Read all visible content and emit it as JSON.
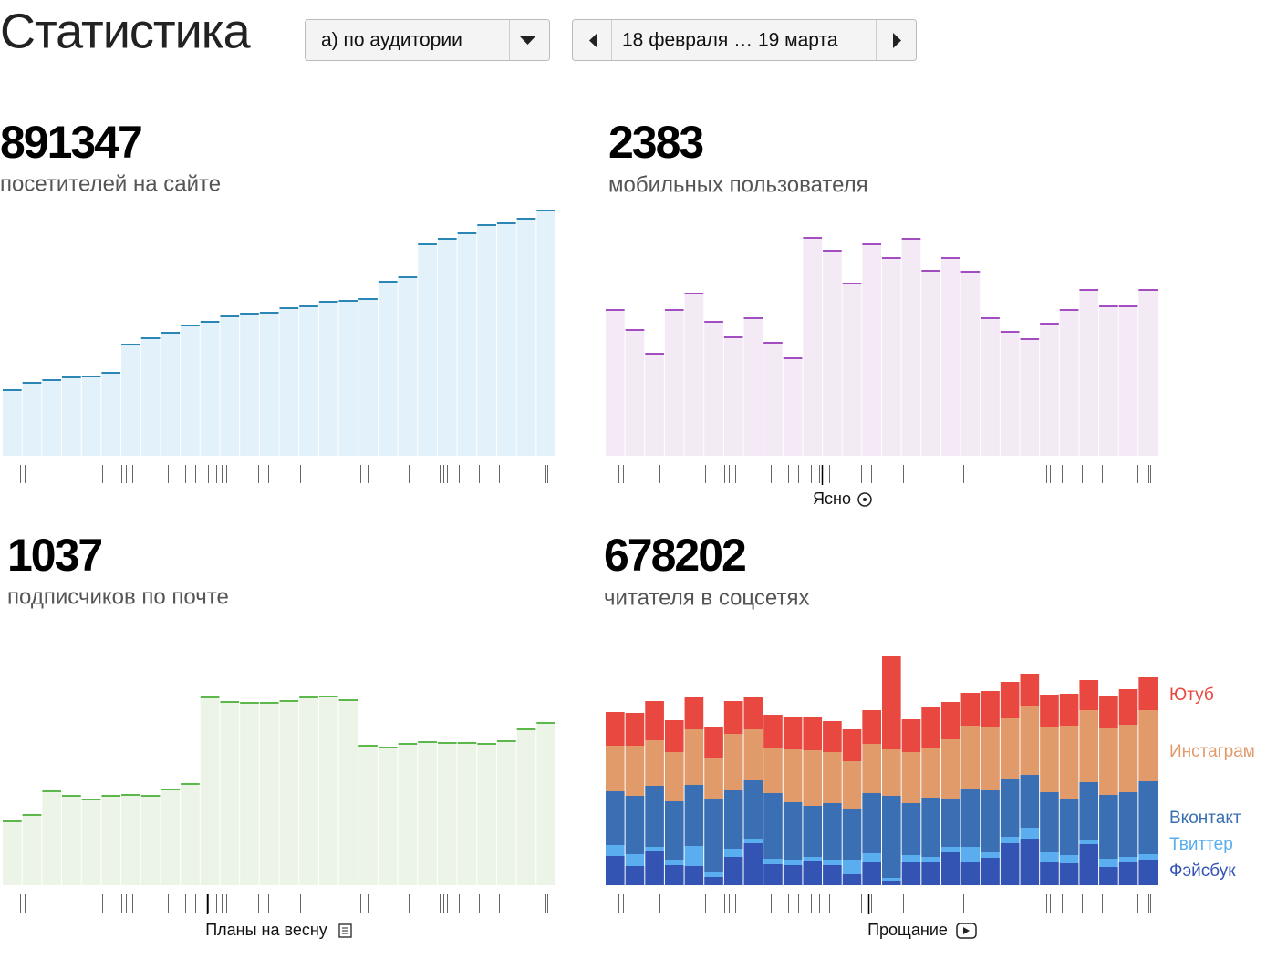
{
  "header": {
    "title": "Статистика",
    "filter": "а) по аудитории",
    "period": "18 февраля … 19 марта"
  },
  "chart_data": [
    {
      "type": "bar",
      "total": 891347,
      "subtitle": "посетителей на сайте",
      "color": "#2a86b5",
      "fill": "#e3f1fa",
      "ylim": [
        0,
        270
      ],
      "values": [
        72,
        80,
        83,
        86,
        87,
        91,
        122,
        129,
        135,
        143,
        147,
        153,
        156,
        157,
        162,
        164,
        169,
        170,
        172,
        191,
        196,
        232,
        238,
        244,
        253,
        255,
        260,
        269
      ]
    },
    {
      "type": "bar",
      "total": 2383,
      "subtitle": "мобильных пользователя",
      "color": "#a24ec0",
      "fill": "#f3eaf5",
      "ylim": [
        0,
        270
      ],
      "annotation": "Ясно",
      "values": [
        160,
        138,
        112,
        160,
        178,
        147,
        130,
        151,
        124,
        107,
        239,
        225,
        189,
        232,
        217,
        238,
        203,
        217,
        202,
        151,
        136,
        128,
        145,
        160,
        182,
        164,
        164,
        182
      ]
    },
    {
      "type": "bar",
      "total": 1037,
      "subtitle": "подписчиков по почте",
      "color": "#5cb84a",
      "fill": "#ecf4e7",
      "ylim": [
        0,
        270
      ],
      "annotation": "Планы на весну",
      "values": [
        70,
        77,
        103,
        98,
        94,
        98,
        99,
        98,
        105,
        111,
        206,
        201,
        200,
        200,
        202,
        206,
        207,
        203,
        153,
        151,
        155,
        157,
        156,
        156,
        155,
        158,
        171,
        178
      ]
    },
    {
      "type": "stacked_bar",
      "total": 678202,
      "subtitle": "читателя в соцсетях",
      "ylim": [
        0,
        270
      ],
      "annotation": "Прощание",
      "series": [
        {
          "name": "Фэйсбук",
          "color": "#3454b4",
          "values": [
            32,
            21,
            38,
            22,
            21,
            9,
            31,
            46,
            23,
            22,
            27,
            22,
            12,
            25,
            5,
            25,
            25,
            36,
            25,
            30,
            46,
            51,
            25,
            24,
            45,
            20,
            25,
            28
          ]
        },
        {
          "name": "Твиттер",
          "color": "#5aaeef",
          "values": [
            12,
            13,
            4,
            6,
            22,
            5,
            9,
            5,
            6,
            6,
            4,
            6,
            16,
            10,
            3,
            8,
            6,
            6,
            17,
            6,
            7,
            12,
            11,
            9,
            5,
            9,
            6,
            6
          ]
        },
        {
          "name": "Вконтакт",
          "color": "#3a6fb3",
          "values": [
            59,
            64,
            67,
            64,
            67,
            80,
            64,
            64,
            72,
            63,
            56,
            62,
            55,
            66,
            90,
            57,
            65,
            52,
            63,
            68,
            64,
            58,
            66,
            62,
            63,
            70,
            71,
            80
          ]
        },
        {
          "name": "Инстаграм",
          "color": "#e19a6a",
          "values": [
            50,
            55,
            50,
            54,
            61,
            45,
            62,
            56,
            50,
            58,
            61,
            56,
            53,
            54,
            51,
            56,
            55,
            66,
            70,
            70,
            66,
            75,
            72,
            80,
            79,
            73,
            74,
            78
          ]
        },
        {
          "name": "Ютуб",
          "color": "#e8483f",
          "values": [
            37,
            36,
            43,
            35,
            35,
            34,
            36,
            35,
            36,
            35,
            36,
            34,
            35,
            37,
            102,
            36,
            44,
            41,
            36,
            39,
            40,
            36,
            35,
            35,
            33,
            36,
            39,
            36
          ]
        }
      ]
    }
  ]
}
